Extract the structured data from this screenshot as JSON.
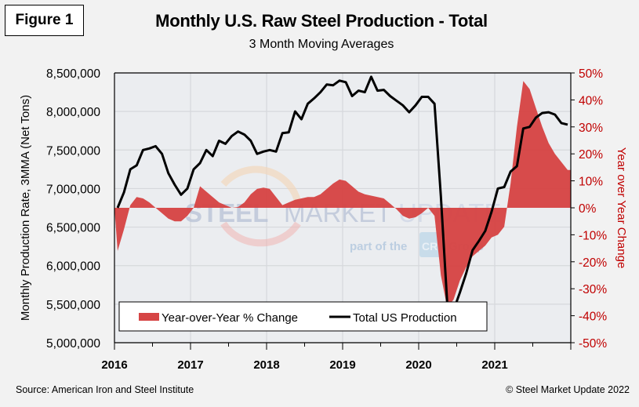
{
  "figure_label": "Figure 1",
  "footer": {
    "source": "Source: American Iron and Steel Institute",
    "copyright": "© Steel Market Update 2022"
  },
  "watermark": {
    "brand": "STEEL MARKET UPDATE",
    "brand_part1": "STEEL",
    "brand_part2": "MARKET",
    "brand_part3": "UPDATE",
    "tagline_pre": "part of the",
    "tagline_logo": "CRU",
    "tagline_post": "Group"
  },
  "colors": {
    "yoy_fill": "#d64545",
    "production_line": "#000000",
    "right_axis_text": "#c00000",
    "plot_bg": "#ebedf0",
    "grid": "#d6d8dc"
  },
  "chart_data": {
    "type": "line",
    "title": "Monthly U.S. Raw Steel Production - Total",
    "subtitle": "3 Month Moving Averages",
    "xlabel": "",
    "ylabel": "Monthly Production Rate, 3MMA (Net Tons)",
    "y2label": "Year over Year Change",
    "x_tick_labels": [
      "2016",
      "2017",
      "2018",
      "2019",
      "2020",
      "2021"
    ],
    "x_range": [
      "2016-01",
      "2021-12"
    ],
    "ylim": [
      5000000,
      8500000
    ],
    "y_ticks": [
      5000000,
      5500000,
      6000000,
      6500000,
      7000000,
      7500000,
      8000000,
      8500000
    ],
    "y_tick_labels": [
      "5,000,000",
      "5,500,000",
      "6,000,000",
      "6,500,000",
      "7,000,000",
      "7,500,000",
      "8,000,000",
      "8,500,000"
    ],
    "y2lim": [
      -50,
      50
    ],
    "y2_ticks": [
      -50,
      -40,
      -30,
      -20,
      -10,
      0,
      10,
      20,
      30,
      40,
      50
    ],
    "y2_tick_labels": [
      "-50%",
      "-40%",
      "-30%",
      "-20%",
      "-10%",
      "0%",
      "10%",
      "20%",
      "30%",
      "40%",
      "50%"
    ],
    "grid": true,
    "legend_position": "bottom-center",
    "legend": [
      "Year-over-Year % Change",
      "Total US Production"
    ],
    "series": [
      {
        "name": "Total US Production",
        "type": "line",
        "axis": "left",
        "x": [
          "2016-01",
          "2016-02",
          "2016-03",
          "2016-04",
          "2016-05",
          "2016-06",
          "2016-07",
          "2016-08",
          "2016-09",
          "2016-10",
          "2016-11",
          "2016-12",
          "2017-01",
          "2017-02",
          "2017-03",
          "2017-04",
          "2017-05",
          "2017-06",
          "2017-07",
          "2017-08",
          "2017-09",
          "2017-10",
          "2017-11",
          "2017-12",
          "2018-01",
          "2018-02",
          "2018-03",
          "2018-04",
          "2018-05",
          "2018-06",
          "2018-07",
          "2018-08",
          "2018-09",
          "2018-10",
          "2018-11",
          "2018-12",
          "2019-01",
          "2019-02",
          "2019-03",
          "2019-04",
          "2019-05",
          "2019-06",
          "2019-07",
          "2019-08",
          "2019-09",
          "2019-10",
          "2019-11",
          "2019-12",
          "2020-01",
          "2020-02",
          "2020-03",
          "2020-04",
          "2020-05",
          "2020-06",
          "2020-07",
          "2020-08",
          "2020-09",
          "2020-10",
          "2020-11",
          "2020-12",
          "2021-01",
          "2021-02",
          "2021-03",
          "2021-04",
          "2021-05",
          "2021-06",
          "2021-07",
          "2021-08",
          "2021-09",
          "2021-10",
          "2021-11",
          "2021-12"
        ],
        "values": [
          6750000,
          6950000,
          7250000,
          7300000,
          7500000,
          7520000,
          7550000,
          7450000,
          7200000,
          7050000,
          6920000,
          7000000,
          7250000,
          7330000,
          7500000,
          7420000,
          7620000,
          7580000,
          7680000,
          7740000,
          7700000,
          7620000,
          7450000,
          7480000,
          7500000,
          7480000,
          7720000,
          7730000,
          8000000,
          7900000,
          8100000,
          8170000,
          8250000,
          8350000,
          8340000,
          8400000,
          8380000,
          8200000,
          8270000,
          8250000,
          8450000,
          8270000,
          8280000,
          8200000,
          8140000,
          8080000,
          7990000,
          8080000,
          8190000,
          8190000,
          8100000,
          6900000,
          5510000,
          5420000,
          5650000,
          5900000,
          6200000,
          6320000,
          6450000,
          6700000,
          7000000,
          7020000,
          7220000,
          7290000,
          7780000,
          7800000,
          7920000,
          7980000,
          7990000,
          7960000,
          7850000,
          7830000
        ]
      },
      {
        "name": "Year-over-Year % Change",
        "type": "area",
        "axis": "right",
        "x": [
          "2016-01",
          "2016-02",
          "2016-03",
          "2016-04",
          "2016-05",
          "2016-06",
          "2016-07",
          "2016-08",
          "2016-09",
          "2016-10",
          "2016-11",
          "2016-12",
          "2017-01",
          "2017-02",
          "2017-03",
          "2017-04",
          "2017-05",
          "2017-06",
          "2017-07",
          "2017-08",
          "2017-09",
          "2017-10",
          "2017-11",
          "2017-12",
          "2018-01",
          "2018-02",
          "2018-03",
          "2018-04",
          "2018-05",
          "2018-06",
          "2018-07",
          "2018-08",
          "2018-09",
          "2018-10",
          "2018-11",
          "2018-12",
          "2019-01",
          "2019-02",
          "2019-03",
          "2019-04",
          "2019-05",
          "2019-06",
          "2019-07",
          "2019-08",
          "2019-09",
          "2019-10",
          "2019-11",
          "2019-12",
          "2020-01",
          "2020-02",
          "2020-03",
          "2020-04",
          "2020-05",
          "2020-06",
          "2020-07",
          "2020-08",
          "2020-09",
          "2020-10",
          "2020-11",
          "2020-12",
          "2021-01",
          "2021-02",
          "2021-03",
          "2021-04",
          "2021-05",
          "2021-06",
          "2021-07",
          "2021-08",
          "2021-09",
          "2021-10",
          "2021-11",
          "2021-12"
        ],
        "values": [
          -16,
          -8,
          1,
          4,
          3.5,
          2,
          0,
          -2,
          -4,
          -5,
          -5,
          -3,
          0,
          8,
          6,
          4,
          2,
          1,
          0,
          0.3,
          2,
          5,
          7,
          7.5,
          7,
          4,
          1,
          2,
          3,
          3.5,
          4,
          4,
          5,
          7,
          9,
          10.5,
          10,
          8,
          6,
          5,
          4.5,
          4,
          3.5,
          1.5,
          -0.5,
          -3,
          -4,
          -3.5,
          -2,
          0,
          -3,
          -25,
          -37,
          -34,
          -27,
          -22,
          -18,
          -16,
          -14,
          -11,
          -10,
          -7,
          9,
          30,
          47,
          44,
          37,
          30,
          24,
          20,
          17,
          14
        ]
      }
    ]
  }
}
